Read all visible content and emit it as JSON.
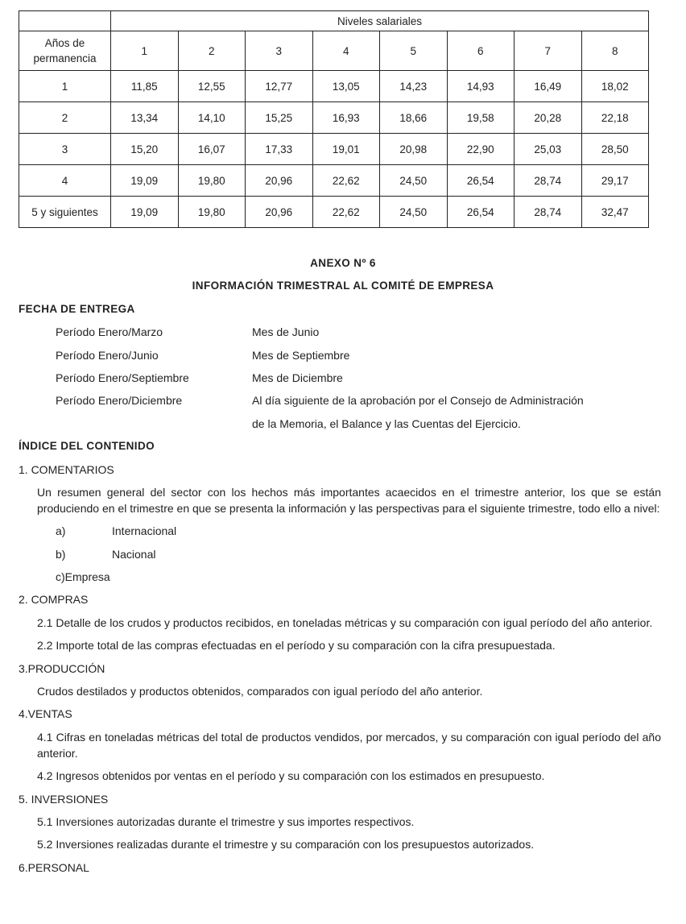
{
  "table": {
    "super_header": "Niveles salariales",
    "row_header": "Años de permanencia",
    "levels": [
      "1",
      "2",
      "3",
      "4",
      "5",
      "6",
      "7",
      "8"
    ],
    "rows": [
      {
        "label": "1",
        "values": [
          "11,85",
          "12,55",
          "12,77",
          "13,05",
          "14,23",
          "14,93",
          "16,49",
          "18,02"
        ]
      },
      {
        "label": "2",
        "values": [
          "13,34",
          "14,10",
          "15,25",
          "16,93",
          "18,66",
          "19,58",
          "20,28",
          "22,18"
        ]
      },
      {
        "label": "3",
        "values": [
          "15,20",
          "16,07",
          "17,33",
          "19,01",
          "20,98",
          "22,90",
          "25,03",
          "28,50"
        ]
      },
      {
        "label": "4",
        "values": [
          "19,09",
          "19,80",
          "20,96",
          "22,62",
          "24,50",
          "26,54",
          "28,74",
          "29,17"
        ]
      },
      {
        "label": "5 y siguientes",
        "values": [
          "19,09",
          "19,80",
          "20,96",
          "22,62",
          "24,50",
          "26,54",
          "28,74",
          "32,47"
        ]
      }
    ]
  },
  "annex": {
    "title": "ANEXO Nº 6",
    "subtitle": "INFORMACIÓN TRIMESTRAL AL COMITÉ DE EMPRESA"
  },
  "fecha": {
    "heading": "FECHA DE ENTREGA",
    "periods": [
      {
        "period": "Período Enero/Marzo",
        "when": "Mes de Junio"
      },
      {
        "period": "Período Enero/Junio",
        "when": "Mes de Septiembre"
      },
      {
        "period": "Período Enero/Septiembre",
        "when": "Mes de Diciembre"
      },
      {
        "period": "Período Enero/Diciembre",
        "when": "Al día siguiente de la aprobación por el Consejo  de Administración"
      },
      {
        "period": "",
        "when": "de la Memoria, el Balance y las Cuentas del Ejercicio."
      }
    ]
  },
  "indice": {
    "heading": "ÍNDICE DEL CONTENIDO",
    "s1": {
      "title": "1. COMENTARIOS",
      "text": "Un resumen general del sector con los hechos más importantes acaecidos en el trimestre anterior, los que se están produciendo en el trimestre en que se presenta la información y las perspectivas para el siguiente trimestre, todo ello a nivel:",
      "items": [
        {
          "k": "a)",
          "v": "Internacional"
        },
        {
          "k": "b)",
          "v": "Nacional"
        }
      ],
      "item_c": "c)Empresa"
    },
    "s2": {
      "title": "2. COMPRAS",
      "p1": "2.1 Detalle de los crudos y productos recibidos, en toneladas métricas y su comparación con igual período del año anterior.",
      "p2": "2.2 Importe total de las compras efectuadas en el período y su comparación con la cifra presupuestada."
    },
    "s3": {
      "title": "3.PRODUCCIÓN",
      "p1": "Crudos destilados y productos obtenidos, comparados con igual período del año anterior."
    },
    "s4": {
      "title": "4.VENTAS",
      "p1": "4.1 Cifras en toneladas métricas del total de productos vendidos, por mercados, y su comparación con igual período del año anterior.",
      "p2": "4.2 Ingresos obtenidos por ventas en el período y su comparación con los estimados en presupuesto."
    },
    "s5": {
      "title": "5. INVERSIONES",
      "p1": "5.1 Inversiones autorizadas durante el trimestre y sus importes respectivos.",
      "p2": "5.2 Inversiones realizadas durante el trimestre y su comparación con los presupuestos autorizados."
    },
    "s6": {
      "title": "6.PERSONAL"
    }
  }
}
